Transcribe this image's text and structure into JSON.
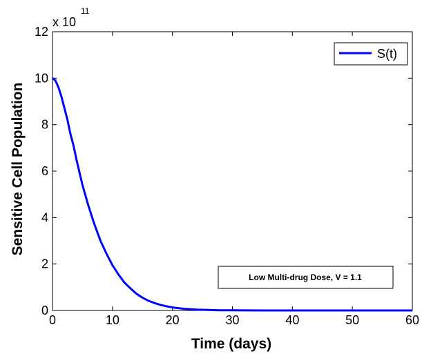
{
  "chart_data": {
    "type": "line",
    "title": "",
    "xlabel": "Time (days)",
    "ylabel": "Sensitive Cell Population",
    "xlim": [
      0,
      60
    ],
    "ylim": [
      0,
      12
    ],
    "y_multiplier": {
      "base": "x 10",
      "exponent": "11"
    },
    "xticks": [
      "0",
      "10",
      "20",
      "30",
      "40",
      "50",
      "60"
    ],
    "yticks": [
      "0",
      "2",
      "4",
      "6",
      "8",
      "10",
      "12"
    ],
    "grid": false,
    "legend": {
      "position": "top-right",
      "entries": [
        "S(t)"
      ]
    },
    "annotation": "Low Multi-drug Dose, V = 1.1",
    "series": [
      {
        "name": "S(t)",
        "color": "#0000ff",
        "x": [
          0,
          0.5,
          1,
          1.5,
          2,
          2.5,
          3,
          3.5,
          4,
          5,
          6,
          7,
          8,
          9,
          10,
          11,
          12,
          13,
          14,
          15,
          16,
          17,
          18,
          19,
          20,
          22,
          24,
          26,
          28,
          30,
          35,
          40,
          45,
          50,
          55,
          60
        ],
        "values": [
          10,
          9.9,
          9.6,
          9.2,
          8.7,
          8.2,
          7.6,
          7.1,
          6.5,
          5.4,
          4.5,
          3.7,
          3.0,
          2.45,
          1.95,
          1.55,
          1.2,
          0.95,
          0.72,
          0.55,
          0.42,
          0.32,
          0.24,
          0.18,
          0.13,
          0.07,
          0.04,
          0.02,
          0.01,
          0.005,
          0.001,
          0.0,
          0.0,
          0.0,
          0.0,
          0.0
        ]
      }
    ]
  }
}
